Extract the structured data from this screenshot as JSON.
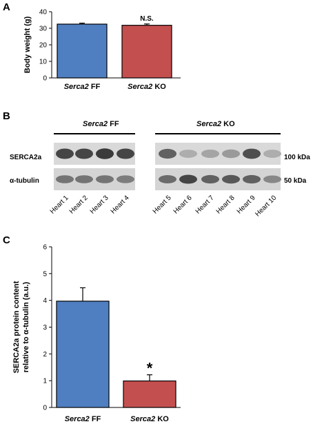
{
  "panels": {
    "a": "A",
    "b": "B",
    "c": "C"
  },
  "chart_data": [
    {
      "type": "bar",
      "panel": "A",
      "categories": [
        {
          "prefix": "Serca2",
          "suffix": " FF"
        },
        {
          "prefix": "Serca2",
          "suffix": " KO"
        }
      ],
      "values": [
        32.5,
        31.8
      ],
      "errors": [
        0.6,
        0.8
      ],
      "colors": [
        "#4f7fc1",
        "#c44f4f"
      ],
      "annotations": [
        "",
        "N.S."
      ],
      "ylabel": "Body weight (g)",
      "ylim": [
        0,
        40
      ],
      "yticks": [
        0,
        10,
        20,
        30,
        40
      ]
    },
    {
      "type": "bar",
      "panel": "C",
      "categories": [
        {
          "prefix": "Serca2",
          "suffix": " FF"
        },
        {
          "prefix": "Serca2",
          "suffix": " KO"
        }
      ],
      "values": [
        3.97,
        0.99
      ],
      "errors": [
        0.5,
        0.23
      ],
      "colors": [
        "#4f7fc1",
        "#c44f4f"
      ],
      "annotations": [
        "",
        "*"
      ],
      "ylabel_lines": [
        "SERCA2a protein content",
        "relative to α-tubulin (a.u.)"
      ],
      "ylim": [
        0,
        6
      ],
      "yticks": [
        0,
        1,
        2,
        3,
        4,
        5,
        6
      ]
    }
  ],
  "blot": {
    "groups": [
      {
        "prefix": "Serca2",
        "suffix": " FF"
      },
      {
        "prefix": "Serca2",
        "suffix": " KO"
      }
    ],
    "rows": [
      "SERCA2a",
      "α-tubulin"
    ],
    "sizes": [
      "100 kDa",
      "50 kDa"
    ],
    "lanes": [
      "Heart 1",
      "Heart 2",
      "Heart 3",
      "Heart 4",
      "Heart 5",
      "Heart 6",
      "Heart 7",
      "Heart 8",
      "Heart 9",
      "Heart 10"
    ],
    "serca_intensity": [
      0.85,
      0.85,
      0.9,
      0.85,
      0.7,
      0.3,
      0.35,
      0.4,
      0.8,
      0.3
    ],
    "tubulin_intensity": [
      0.6,
      0.6,
      0.6,
      0.55,
      0.65,
      0.85,
      0.7,
      0.75,
      0.7,
      0.5
    ]
  }
}
